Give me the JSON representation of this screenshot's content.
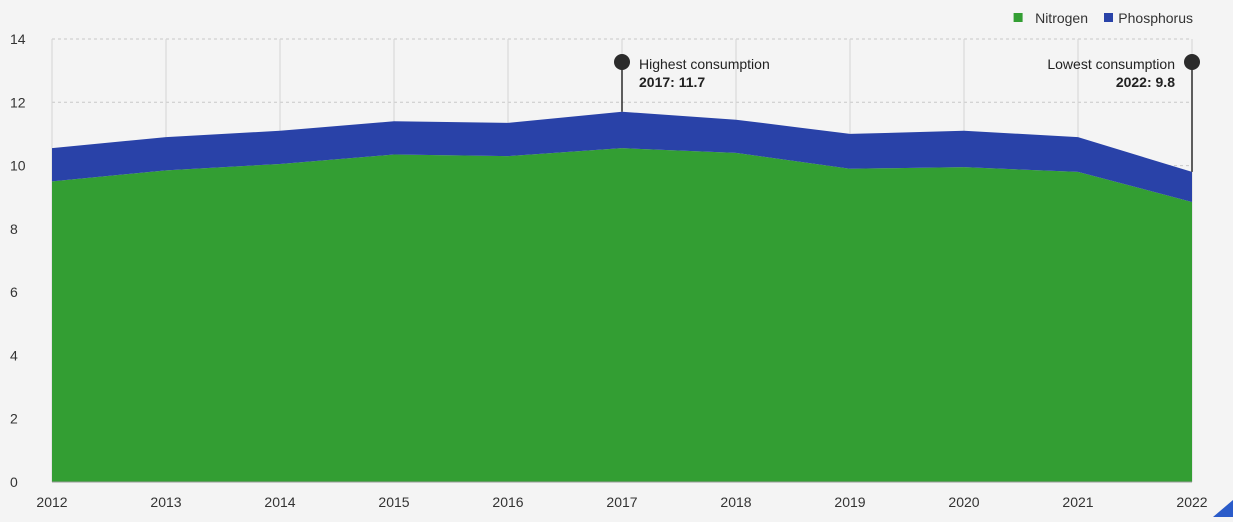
{
  "chart_data": {
    "type": "area",
    "stacked": true,
    "x": [
      "2012",
      "2013",
      "2014",
      "2015",
      "2016",
      "2017",
      "2018",
      "2019",
      "2020",
      "2021",
      "2022"
    ],
    "series": [
      {
        "name": "Nitrogen",
        "values": [
          9.5,
          9.85,
          10.05,
          10.35,
          10.3,
          10.55,
          10.4,
          9.9,
          9.95,
          9.8,
          8.85
        ]
      },
      {
        "name": "Phosphorus",
        "values": [
          1.05,
          1.05,
          1.05,
          1.05,
          1.05,
          1.15,
          1.05,
          1.1,
          1.15,
          1.1,
          0.95
        ]
      }
    ],
    "ylim": [
      0,
      14
    ],
    "yticks": [
      0,
      2,
      4,
      6,
      8,
      10,
      12,
      14
    ],
    "grid": true,
    "legend_position": "top-right",
    "colors": {
      "Nitrogen": "#339e33",
      "Phosphorus": "#2942a8"
    },
    "annotations": [
      {
        "x": "2017",
        "title": "Highest consumption",
        "value_text": "2017: 11.7",
        "align": "right-of-line"
      },
      {
        "x": "2022",
        "title": "Lowest consumption",
        "value_text": "2022: 9.8",
        "align": "left-of-line"
      }
    ]
  }
}
